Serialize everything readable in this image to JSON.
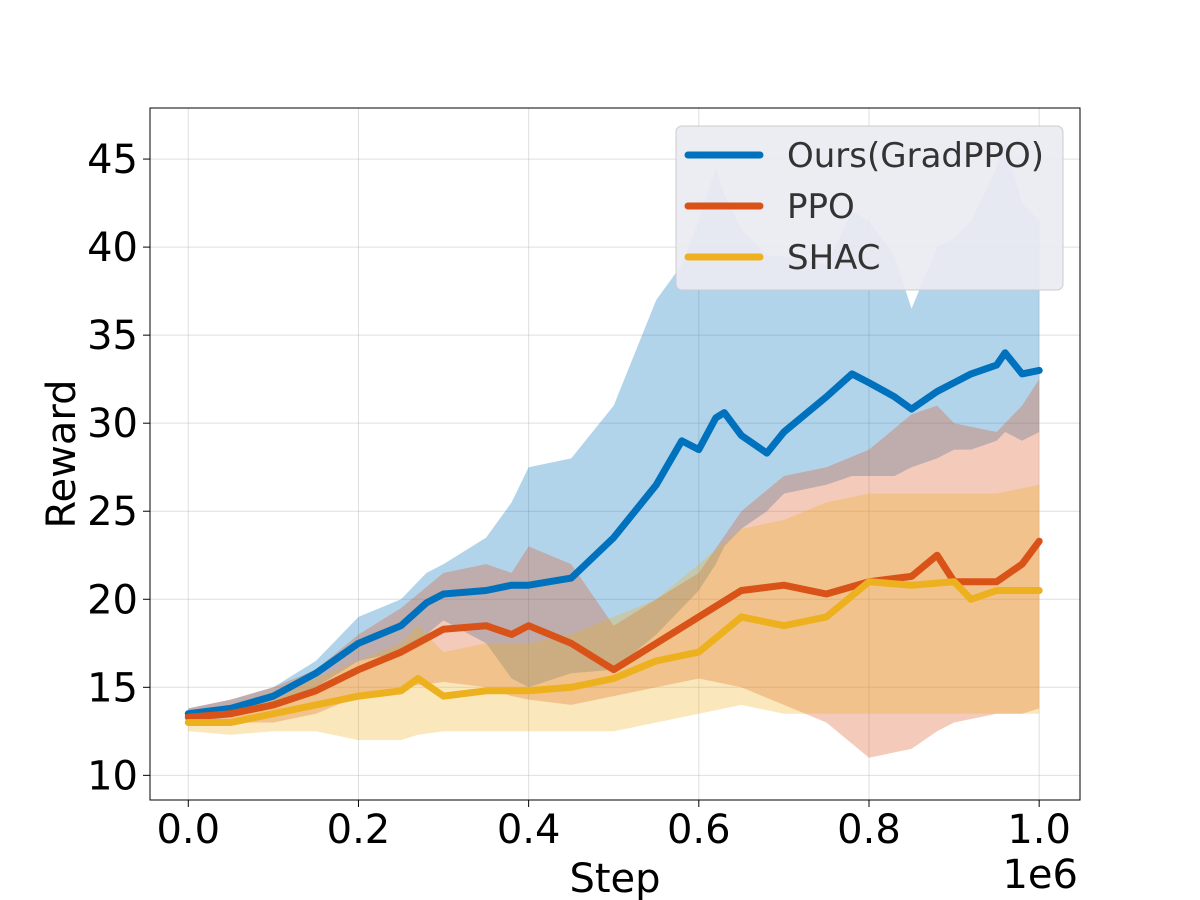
{
  "chart_data": {
    "type": "line",
    "title": "",
    "xlabel": "Step",
    "ylabel": "Reward",
    "x_offset_label": "1e6",
    "xlim": [
      -0.045,
      1.048
    ],
    "ylim": [
      8.6,
      47.9
    ],
    "x_ticks": [
      0.0,
      0.2,
      0.4,
      0.6,
      0.8,
      1.0
    ],
    "x_tick_labels": [
      "0.0",
      "0.2",
      "0.4",
      "0.6",
      "0.8",
      "1.0"
    ],
    "y_ticks": [
      10,
      15,
      20,
      25,
      30,
      35,
      40,
      45
    ],
    "y_tick_labels": [
      "10",
      "15",
      "20",
      "25",
      "30",
      "35",
      "40",
      "45"
    ],
    "grid": true,
    "legend_position": "top-right",
    "legend_background": "#eaeaf2",
    "series": [
      {
        "name": "Ours(GradPPO)",
        "color": "#0072bd",
        "band_opacity": 0.3,
        "x": [
          0.0,
          0.05,
          0.1,
          0.15,
          0.2,
          0.25,
          0.28,
          0.3,
          0.35,
          0.38,
          0.4,
          0.45,
          0.5,
          0.55,
          0.58,
          0.6,
          0.62,
          0.63,
          0.65,
          0.68,
          0.7,
          0.75,
          0.78,
          0.8,
          0.83,
          0.85,
          0.88,
          0.9,
          0.92,
          0.95,
          0.96,
          0.98,
          1.0
        ],
        "mean": [
          13.5,
          13.8,
          14.5,
          15.8,
          17.5,
          18.5,
          19.8,
          20.3,
          20.5,
          20.8,
          20.8,
          21.2,
          23.5,
          26.5,
          29.0,
          28.5,
          30.3,
          30.6,
          29.3,
          28.3,
          29.5,
          31.5,
          32.8,
          32.3,
          31.5,
          30.8,
          31.8,
          32.3,
          32.8,
          33.3,
          34.0,
          32.8,
          33.0
        ],
        "upper": [
          13.8,
          14.3,
          15.0,
          16.5,
          19.0,
          20.0,
          21.5,
          22.0,
          23.5,
          25.5,
          27.5,
          28.0,
          31.0,
          37.0,
          39.0,
          41.5,
          44.5,
          43.0,
          41.0,
          39.5,
          39.5,
          39.0,
          42.0,
          41.5,
          39.5,
          36.5,
          40.0,
          40.5,
          41.5,
          44.5,
          46.0,
          42.5,
          41.5
        ],
        "lower": [
          13.0,
          13.3,
          14.0,
          15.0,
          16.5,
          17.0,
          18.0,
          18.8,
          17.5,
          15.5,
          15.0,
          15.8,
          16.0,
          18.0,
          19.5,
          20.5,
          22.0,
          23.0,
          24.0,
          25.0,
          26.0,
          26.5,
          27.0,
          27.0,
          27.0,
          27.5,
          28.0,
          28.5,
          28.5,
          29.0,
          29.5,
          29.0,
          29.5
        ]
      },
      {
        "name": "PPO",
        "color": "#d95319",
        "band_opacity": 0.3,
        "x": [
          0.0,
          0.05,
          0.1,
          0.15,
          0.2,
          0.25,
          0.3,
          0.35,
          0.38,
          0.4,
          0.45,
          0.5,
          0.55,
          0.6,
          0.65,
          0.7,
          0.75,
          0.8,
          0.85,
          0.88,
          0.9,
          0.95,
          0.98,
          1.0
        ],
        "mean": [
          13.3,
          13.5,
          14.0,
          14.8,
          16.0,
          17.0,
          18.3,
          18.5,
          18.0,
          18.5,
          17.5,
          16.0,
          17.5,
          19.0,
          20.5,
          20.8,
          20.3,
          21.0,
          21.3,
          22.5,
          21.0,
          21.0,
          22.0,
          23.3
        ],
        "upper": [
          13.8,
          14.3,
          15.0,
          16.0,
          18.0,
          19.5,
          21.5,
          22.0,
          21.5,
          23.0,
          22.0,
          18.5,
          20.0,
          21.5,
          25.0,
          27.0,
          27.5,
          28.5,
          30.5,
          31.0,
          30.0,
          29.5,
          31.0,
          32.5
        ],
        "lower": [
          12.8,
          13.0,
          13.0,
          13.5,
          14.5,
          15.0,
          15.3,
          15.0,
          14.5,
          14.3,
          14.0,
          14.5,
          15.0,
          15.5,
          15.0,
          14.0,
          13.0,
          11.0,
          11.5,
          12.5,
          13.0,
          13.5,
          13.5,
          13.8
        ]
      },
      {
        "name": "SHAC",
        "color": "#edb120",
        "band_opacity": 0.3,
        "x": [
          0.0,
          0.05,
          0.1,
          0.15,
          0.2,
          0.25,
          0.27,
          0.3,
          0.35,
          0.4,
          0.45,
          0.5,
          0.55,
          0.6,
          0.65,
          0.7,
          0.75,
          0.8,
          0.85,
          0.9,
          0.92,
          0.95,
          1.0
        ],
        "mean": [
          13.0,
          13.0,
          13.5,
          14.0,
          14.5,
          14.8,
          15.5,
          14.5,
          14.8,
          14.8,
          15.0,
          15.5,
          16.5,
          17.0,
          19.0,
          18.5,
          19.0,
          21.0,
          20.8,
          21.0,
          20.0,
          20.5,
          20.5
        ],
        "upper": [
          13.5,
          13.8,
          14.5,
          15.5,
          16.5,
          17.5,
          18.5,
          17.0,
          17.5,
          17.5,
          18.0,
          19.0,
          20.0,
          22.0,
          24.0,
          24.5,
          25.5,
          26.0,
          26.0,
          26.0,
          26.0,
          26.0,
          26.5
        ],
        "lower": [
          12.5,
          12.3,
          12.5,
          12.5,
          12.0,
          12.0,
          12.3,
          12.5,
          12.5,
          12.5,
          12.5,
          12.5,
          13.0,
          13.5,
          14.0,
          13.5,
          13.5,
          13.5,
          13.5,
          13.5,
          13.5,
          13.5,
          13.5
        ]
      }
    ]
  }
}
